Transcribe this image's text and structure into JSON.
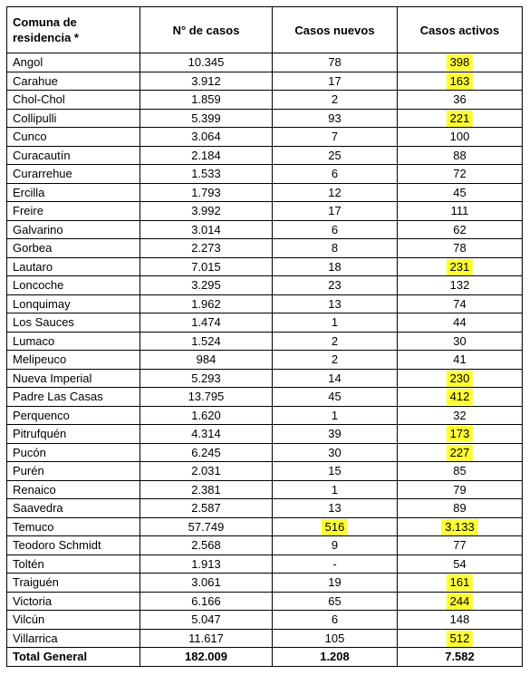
{
  "columns": {
    "comuna_line1": "Comuna de",
    "comuna_line2": "residencia *",
    "casos": "N° de casos",
    "nuevos": "Casos nuevos",
    "activos": "Casos activos"
  },
  "rows": [
    {
      "comuna": "Angol",
      "casos": "10.345",
      "nuevos": "78",
      "activos": "398",
      "hl_nuevos": false,
      "hl_activos": true
    },
    {
      "comuna": "Carahue",
      "casos": "3.912",
      "nuevos": "17",
      "activos": "163",
      "hl_nuevos": false,
      "hl_activos": true
    },
    {
      "comuna": "Chol-Chol",
      "casos": "1.859",
      "nuevos": "2",
      "activos": "36",
      "hl_nuevos": false,
      "hl_activos": false
    },
    {
      "comuna": "Collipulli",
      "casos": "5.399",
      "nuevos": "93",
      "activos": "221",
      "hl_nuevos": false,
      "hl_activos": true
    },
    {
      "comuna": "Cunco",
      "casos": "3.064",
      "nuevos": "7",
      "activos": "100",
      "hl_nuevos": false,
      "hl_activos": false
    },
    {
      "comuna": "Curacautín",
      "casos": "2.184",
      "nuevos": "25",
      "activos": "88",
      "hl_nuevos": false,
      "hl_activos": false
    },
    {
      "comuna": "Curarrehue",
      "casos": "1.533",
      "nuevos": "6",
      "activos": "72",
      "hl_nuevos": false,
      "hl_activos": false
    },
    {
      "comuna": "Ercilla",
      "casos": "1.793",
      "nuevos": "12",
      "activos": "45",
      "hl_nuevos": false,
      "hl_activos": false
    },
    {
      "comuna": "Freire",
      "casos": "3.992",
      "nuevos": "17",
      "activos": "111",
      "hl_nuevos": false,
      "hl_activos": false
    },
    {
      "comuna": "Galvarino",
      "casos": "3.014",
      "nuevos": "6",
      "activos": "62",
      "hl_nuevos": false,
      "hl_activos": false
    },
    {
      "comuna": "Gorbea",
      "casos": "2.273",
      "nuevos": "8",
      "activos": "78",
      "hl_nuevos": false,
      "hl_activos": false
    },
    {
      "comuna": "Lautaro",
      "casos": "7.015",
      "nuevos": "18",
      "activos": "231",
      "hl_nuevos": false,
      "hl_activos": true
    },
    {
      "comuna": "Loncoche",
      "casos": "3.295",
      "nuevos": "23",
      "activos": "132",
      "hl_nuevos": false,
      "hl_activos": false
    },
    {
      "comuna": "Lonquimay",
      "casos": "1.962",
      "nuevos": "13",
      "activos": "74",
      "hl_nuevos": false,
      "hl_activos": false
    },
    {
      "comuna": "Los Sauces",
      "casos": "1.474",
      "nuevos": "1",
      "activos": "44",
      "hl_nuevos": false,
      "hl_activos": false
    },
    {
      "comuna": "Lumaco",
      "casos": "1.524",
      "nuevos": "2",
      "activos": "30",
      "hl_nuevos": false,
      "hl_activos": false
    },
    {
      "comuna": "Melipeuco",
      "casos": "984",
      "nuevos": "2",
      "activos": "41",
      "hl_nuevos": false,
      "hl_activos": false
    },
    {
      "comuna": "Nueva Imperial",
      "casos": "5.293",
      "nuevos": "14",
      "activos": "230",
      "hl_nuevos": false,
      "hl_activos": true
    },
    {
      "comuna": "Padre Las Casas",
      "casos": "13.795",
      "nuevos": "45",
      "activos": "412",
      "hl_nuevos": false,
      "hl_activos": true
    },
    {
      "comuna": "Perquenco",
      "casos": "1.620",
      "nuevos": "1",
      "activos": "32",
      "hl_nuevos": false,
      "hl_activos": false
    },
    {
      "comuna": "Pitrufquén",
      "casos": "4.314",
      "nuevos": "39",
      "activos": "173",
      "hl_nuevos": false,
      "hl_activos": true
    },
    {
      "comuna": "Pucón",
      "casos": "6.245",
      "nuevos": "30",
      "activos": "227",
      "hl_nuevos": false,
      "hl_activos": true
    },
    {
      "comuna": "Purén",
      "casos": "2.031",
      "nuevos": "15",
      "activos": "85",
      "hl_nuevos": false,
      "hl_activos": false
    },
    {
      "comuna": "Renaico",
      "casos": "2.381",
      "nuevos": "1",
      "activos": "79",
      "hl_nuevos": false,
      "hl_activos": false
    },
    {
      "comuna": "Saavedra",
      "casos": "2.587",
      "nuevos": "13",
      "activos": "89",
      "hl_nuevos": false,
      "hl_activos": false
    },
    {
      "comuna": "Temuco",
      "casos": "57.749",
      "nuevos": "516",
      "activos": "3.133",
      "hl_nuevos": true,
      "hl_activos": true
    },
    {
      "comuna": "Teodoro Schmidt",
      "casos": "2.568",
      "nuevos": "9",
      "activos": "77",
      "hl_nuevos": false,
      "hl_activos": false
    },
    {
      "comuna": "Toltén",
      "casos": "1.913",
      "nuevos": "-",
      "activos": "54",
      "hl_nuevos": false,
      "hl_activos": false
    },
    {
      "comuna": "Traiguén",
      "casos": "3.061",
      "nuevos": "19",
      "activos": "161",
      "hl_nuevos": false,
      "hl_activos": true
    },
    {
      "comuna": "Victoria",
      "casos": "6.166",
      "nuevos": "65",
      "activos": "244",
      "hl_nuevos": false,
      "hl_activos": true
    },
    {
      "comuna": "Vilcún",
      "casos": "5.047",
      "nuevos": "6",
      "activos": "148",
      "hl_nuevos": false,
      "hl_activos": false
    },
    {
      "comuna": "Villarrica",
      "casos": "11.617",
      "nuevos": "105",
      "activos": "512",
      "hl_nuevos": false,
      "hl_activos": true
    }
  ],
  "total": {
    "label": "Total General",
    "casos": "182.009",
    "nuevos": "1.208",
    "activos": "7.582"
  },
  "colors": {
    "highlight": "#ffff33",
    "border": "#000000"
  }
}
